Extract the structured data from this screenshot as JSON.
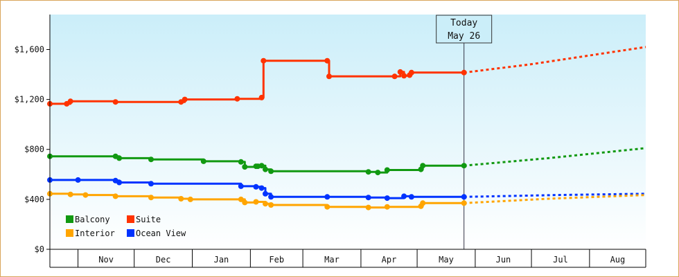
{
  "chart_data": {
    "type": "line",
    "y_ticks": [
      0,
      400,
      800,
      1200,
      1600
    ],
    "y_tick_labels": [
      "$0",
      "$400",
      "$800",
      "$1,200",
      "$1,600"
    ],
    "ylim": [
      0,
      1880
    ],
    "xlim": [
      "2016-10-17",
      "2017-08-31"
    ],
    "month_labels": [
      {
        "label": "Nov",
        "start": "2016-11-01",
        "end": "2016-12-01"
      },
      {
        "label": "Dec",
        "start": "2016-12-01",
        "end": "2017-01-01"
      },
      {
        "label": "Jan",
        "start": "2017-01-01",
        "end": "2017-02-01"
      },
      {
        "label": "Feb",
        "start": "2017-02-01",
        "end": "2017-03-01"
      },
      {
        "label": "Mar",
        "start": "2017-03-01",
        "end": "2017-04-01"
      },
      {
        "label": "Apr",
        "start": "2017-04-01",
        "end": "2017-05-01"
      },
      {
        "label": "May",
        "start": "2017-05-01",
        "end": "2017-06-01"
      },
      {
        "label": "Jun",
        "start": "2017-06-01",
        "end": "2017-07-01"
      },
      {
        "label": "Jul",
        "start": "2017-07-01",
        "end": "2017-08-01"
      },
      {
        "label": "Aug",
        "start": "2017-08-01",
        "end": "2017-09-01"
      }
    ],
    "today": {
      "line1": "Today",
      "line2": "May 26",
      "date": "2017-05-26"
    },
    "grid": false,
    "legend_position": "bottom-left",
    "background": {
      "top": "#cbeef9",
      "bottom": "#ffffff"
    },
    "series": [
      {
        "name": "Suite",
        "color": "#ff3300",
        "points": [
          [
            "2016-10-17",
            1165
          ],
          [
            "2016-10-26",
            1165
          ],
          [
            "2016-10-28",
            1185
          ],
          [
            "2016-11-21",
            1180
          ],
          [
            "2016-12-26",
            1180
          ],
          [
            "2016-12-28",
            1200
          ],
          [
            "2017-01-25",
            1205
          ],
          [
            "2017-02-07",
            1215
          ],
          [
            "2017-02-08",
            1510
          ],
          [
            "2017-03-14",
            1510
          ],
          [
            "2017-03-15",
            1385
          ],
          [
            "2017-04-19",
            1385
          ],
          [
            "2017-04-22",
            1420
          ],
          [
            "2017-04-24",
            1390
          ],
          [
            "2017-04-27",
            1395
          ],
          [
            "2017-04-28",
            1415
          ],
          [
            "2017-05-26",
            1415
          ]
        ],
        "forecast": [
          [
            "2017-05-26",
            1415
          ],
          [
            "2017-06-30",
            1480
          ],
          [
            "2017-08-31",
            1620
          ]
        ]
      },
      {
        "name": "Balcony",
        "color": "#119911",
        "points": [
          [
            "2016-10-17",
            745
          ],
          [
            "2016-11-21",
            745
          ],
          [
            "2016-11-23",
            730
          ],
          [
            "2016-12-10",
            720
          ],
          [
            "2017-01-07",
            705
          ],
          [
            "2017-01-27",
            700
          ],
          [
            "2017-01-29",
            660
          ],
          [
            "2017-02-04",
            665
          ],
          [
            "2017-02-05",
            665
          ],
          [
            "2017-02-07",
            670
          ],
          [
            "2017-02-09",
            640
          ],
          [
            "2017-02-12",
            625
          ],
          [
            "2017-04-05",
            620
          ],
          [
            "2017-04-10",
            615
          ],
          [
            "2017-04-15",
            635
          ],
          [
            "2017-05-03",
            640
          ],
          [
            "2017-05-04",
            670
          ],
          [
            "2017-05-26",
            670
          ]
        ],
        "forecast": [
          [
            "2017-05-26",
            670
          ],
          [
            "2017-07-10",
            730
          ],
          [
            "2017-08-31",
            810
          ]
        ]
      },
      {
        "name": "Ocean View",
        "color": "#0033ff",
        "points": [
          [
            "2016-10-17",
            555
          ],
          [
            "2016-11-01",
            555
          ],
          [
            "2016-11-21",
            550
          ],
          [
            "2016-11-23",
            535
          ],
          [
            "2016-12-10",
            525
          ],
          [
            "2017-01-27",
            505
          ],
          [
            "2017-02-04",
            500
          ],
          [
            "2017-02-07",
            490
          ],
          [
            "2017-02-09",
            445
          ],
          [
            "2017-02-12",
            420
          ],
          [
            "2017-03-14",
            420
          ],
          [
            "2017-04-05",
            415
          ],
          [
            "2017-04-15",
            410
          ],
          [
            "2017-04-24",
            425
          ],
          [
            "2017-04-28",
            420
          ],
          [
            "2017-05-26",
            420
          ]
        ],
        "forecast": [
          [
            "2017-05-26",
            420
          ],
          [
            "2017-07-15",
            435
          ],
          [
            "2017-08-31",
            445
          ]
        ]
      },
      {
        "name": "Interior",
        "color": "#ffa500",
        "points": [
          [
            "2016-10-17",
            445
          ],
          [
            "2016-10-28",
            440
          ],
          [
            "2016-11-05",
            435
          ],
          [
            "2016-11-21",
            425
          ],
          [
            "2016-12-10",
            415
          ],
          [
            "2016-12-26",
            405
          ],
          [
            "2016-12-31",
            400
          ],
          [
            "2017-01-27",
            400
          ],
          [
            "2017-01-29",
            375
          ],
          [
            "2017-02-04",
            380
          ],
          [
            "2017-02-09",
            365
          ],
          [
            "2017-02-12",
            355
          ],
          [
            "2017-03-14",
            340
          ],
          [
            "2017-04-05",
            335
          ],
          [
            "2017-04-15",
            340
          ],
          [
            "2017-05-03",
            345
          ],
          [
            "2017-05-04",
            370
          ],
          [
            "2017-05-26",
            370
          ]
        ],
        "forecast": [
          [
            "2017-05-26",
            370
          ],
          [
            "2017-07-10",
            405
          ],
          [
            "2017-08-31",
            435
          ]
        ]
      }
    ],
    "legend": [
      {
        "name": "Balcony",
        "color": "#119911"
      },
      {
        "name": "Suite",
        "color": "#ff3300"
      },
      {
        "name": "Interior",
        "color": "#ffa500"
      },
      {
        "name": "Ocean View",
        "color": "#0033ff"
      }
    ]
  }
}
